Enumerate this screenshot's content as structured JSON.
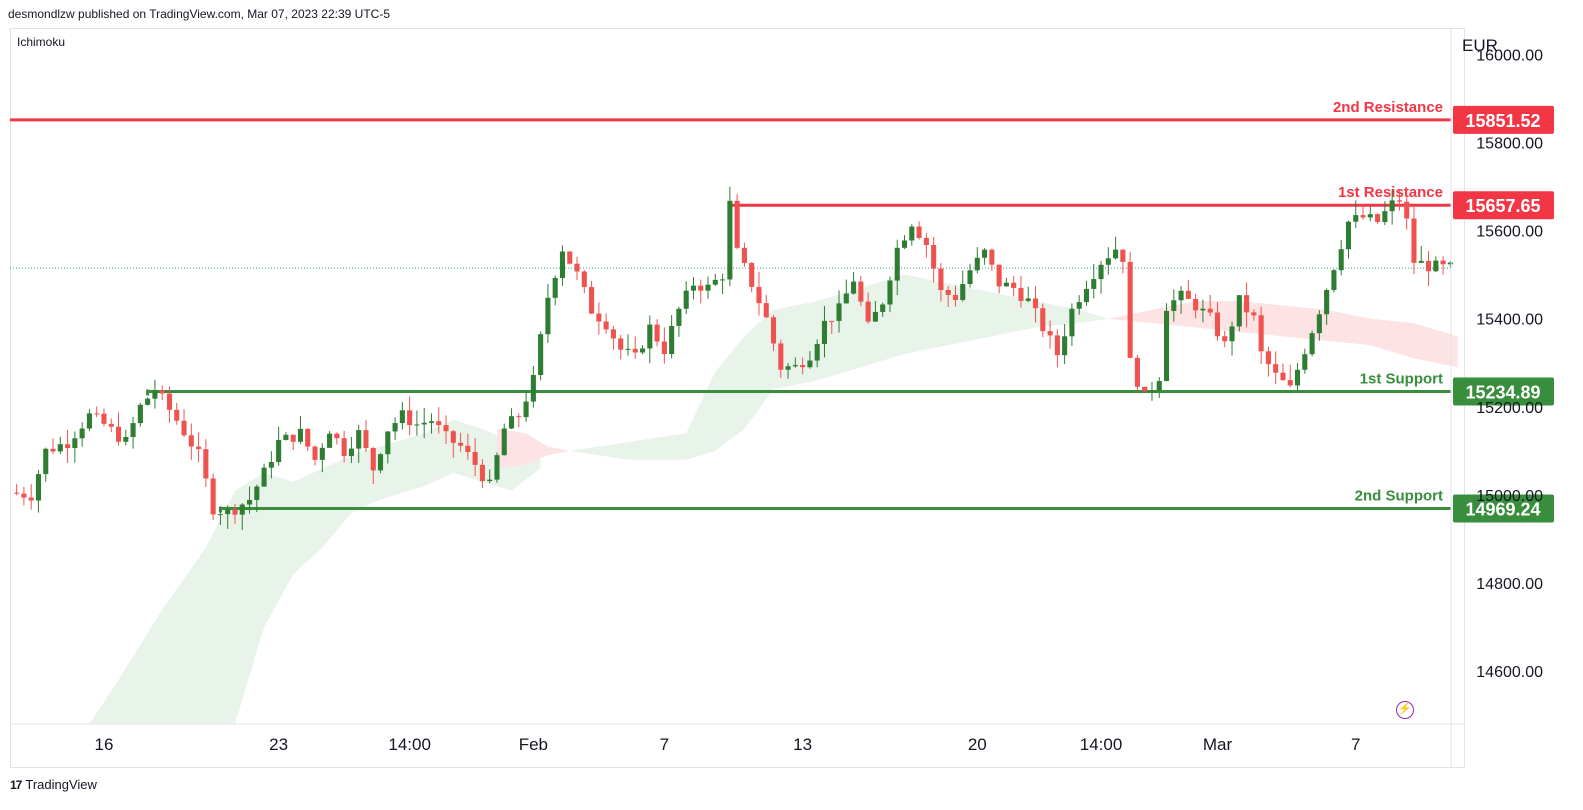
{
  "publisher_line": "desmondlzw published on TradingView.com, Mar 07, 2023 22:39 UTC-5",
  "indicator": "Ichimoku",
  "footer": {
    "brand": "TradingView"
  },
  "icons": {
    "footer_logo": "tradingview-logo-icon",
    "alert": "lightning-icon"
  },
  "chart_data": {
    "type": "candlestick",
    "currency": "EUR",
    "ylim": [
      14480,
      16060
    ],
    "y_ticks": [
      14600,
      14800,
      15000,
      15200,
      15400,
      15600,
      15800,
      16000
    ],
    "y_tick_labels": [
      "14600.00",
      "14800.00",
      "15000.00",
      "15200.00",
      "15400.00",
      "15600.00",
      "15800.00",
      "16000.00"
    ],
    "x_ticks": [
      {
        "label": "16",
        "bar": 12
      },
      {
        "label": "23",
        "bar": 36
      },
      {
        "label": "14:00",
        "bar": 54
      },
      {
        "label": "Feb",
        "bar": 71
      },
      {
        "label": "7",
        "bar": 89
      },
      {
        "label": "13",
        "bar": 108
      },
      {
        "label": "20",
        "bar": 132
      },
      {
        "label": "14:00",
        "bar": 149
      },
      {
        "label": "Mar",
        "bar": 165
      },
      {
        "label": "7",
        "bar": 184
      }
    ],
    "bar_count": 198,
    "last_price": 15515,
    "levels": [
      {
        "name": "2nd Resistance",
        "value": 15851.52,
        "value_label": "15851.52",
        "color": "#f23645",
        "start_bar": 0
      },
      {
        "name": "1st Resistance",
        "value": 15657.65,
        "value_label": "15657.65",
        "color": "#f23645",
        "start_bar": 98
      },
      {
        "name": "1st Support",
        "value": 15234.89,
        "value_label": "15234.89",
        "color": "#388e3c",
        "start_bar": 18
      },
      {
        "name": "2nd Support",
        "value": 14969.24,
        "value_label": "14969.24",
        "color": "#388e3c",
        "start_bar": 28
      }
    ],
    "colors": {
      "up": "#2e7d32",
      "down": "#ef5350",
      "cloud_bull": "#e8f3ea",
      "cloud_bear": "#fde3e3",
      "grid": "#eef0f4",
      "axis_text": "#131722",
      "last_price_line": "#26a69a"
    },
    "price_path": [
      [
        0,
        15005
      ],
      [
        3,
        15000
      ],
      [
        5,
        15100
      ],
      [
        8,
        15120
      ],
      [
        11,
        15180
      ],
      [
        13,
        15160
      ],
      [
        16,
        15120
      ],
      [
        18,
        15200
      ],
      [
        20,
        15240
      ],
      [
        23,
        15170
      ],
      [
        26,
        15090
      ],
      [
        28,
        14970
      ],
      [
        30,
        14960
      ],
      [
        33,
        14990
      ],
      [
        35,
        15050
      ],
      [
        37,
        15120
      ],
      [
        40,
        15140
      ],
      [
        42,
        15080
      ],
      [
        44,
        15150
      ],
      [
        46,
        15100
      ],
      [
        48,
        15140
      ],
      [
        50,
        15060
      ],
      [
        52,
        15150
      ],
      [
        54,
        15180
      ],
      [
        56,
        15160
      ],
      [
        58,
        15170
      ],
      [
        60,
        15130
      ],
      [
        62,
        15110
      ],
      [
        64,
        15070
      ],
      [
        66,
        15020
      ],
      [
        68,
        15150
      ],
      [
        70,
        15180
      ],
      [
        72,
        15260
      ],
      [
        74,
        15450
      ],
      [
        76,
        15560
      ],
      [
        78,
        15500
      ],
      [
        80,
        15420
      ],
      [
        82,
        15390
      ],
      [
        84,
        15330
      ],
      [
        86,
        15310
      ],
      [
        88,
        15380
      ],
      [
        90,
        15330
      ],
      [
        92,
        15420
      ],
      [
        94,
        15480
      ],
      [
        96,
        15470
      ],
      [
        98,
        15500
      ],
      [
        99,
        15660
      ],
      [
        100,
        15550
      ],
      [
        102,
        15480
      ],
      [
        104,
        15400
      ],
      [
        106,
        15290
      ],
      [
        108,
        15290
      ],
      [
        110,
        15320
      ],
      [
        112,
        15390
      ],
      [
        114,
        15420
      ],
      [
        116,
        15490
      ],
      [
        118,
        15380
      ],
      [
        120,
        15440
      ],
      [
        122,
        15560
      ],
      [
        124,
        15620
      ],
      [
        126,
        15570
      ],
      [
        128,
        15460
      ],
      [
        130,
        15450
      ],
      [
        132,
        15510
      ],
      [
        134,
        15550
      ],
      [
        136,
        15480
      ],
      [
        138,
        15470
      ],
      [
        140,
        15440
      ],
      [
        142,
        15380
      ],
      [
        144,
        15320
      ],
      [
        146,
        15420
      ],
      [
        148,
        15480
      ],
      [
        150,
        15530
      ],
      [
        152,
        15560
      ],
      [
        153,
        15540
      ],
      [
        154,
        15300
      ],
      [
        156,
        15220
      ],
      [
        158,
        15270
      ],
      [
        159,
        15430
      ],
      [
        161,
        15450
      ],
      [
        163,
        15430
      ],
      [
        165,
        15400
      ],
      [
        167,
        15340
      ],
      [
        169,
        15440
      ],
      [
        171,
        15400
      ],
      [
        172,
        15320
      ],
      [
        174,
        15270
      ],
      [
        176,
        15240
      ],
      [
        178,
        15330
      ],
      [
        180,
        15420
      ],
      [
        182,
        15520
      ],
      [
        184,
        15620
      ],
      [
        186,
        15630
      ],
      [
        188,
        15620
      ],
      [
        190,
        15660
      ],
      [
        191,
        15670
      ],
      [
        192,
        15620
      ],
      [
        193,
        15530
      ],
      [
        195,
        15520
      ],
      [
        197,
        15515
      ]
    ],
    "cloud": [
      {
        "from_bar": 10,
        "to_bar": 72,
        "kind": "bull",
        "top": [
          [
            10,
            14480
          ],
          [
            14,
            14580
          ],
          [
            20,
            14740
          ],
          [
            26,
            14880
          ],
          [
            30,
            15010
          ],
          [
            34,
            15050
          ],
          [
            38,
            15030
          ],
          [
            42,
            15060
          ],
          [
            46,
            15090
          ],
          [
            50,
            15110
          ],
          [
            56,
            15140
          ],
          [
            60,
            15170
          ],
          [
            64,
            15150
          ],
          [
            68,
            15120
          ],
          [
            72,
            15090
          ]
        ],
        "bottom": [
          [
            10,
            14480
          ],
          [
            14,
            14480
          ],
          [
            20,
            14480
          ],
          [
            26,
            14480
          ],
          [
            30,
            14480
          ],
          [
            34,
            14700
          ],
          [
            38,
            14820
          ],
          [
            42,
            14880
          ],
          [
            46,
            14960
          ],
          [
            50,
            14990
          ],
          [
            56,
            15020
          ],
          [
            60,
            15050
          ],
          [
            64,
            15030
          ],
          [
            68,
            15010
          ],
          [
            72,
            15060
          ]
        ]
      },
      {
        "from_bar": 66,
        "to_bar": 76,
        "kind": "bear",
        "top": [
          [
            66,
            15150
          ],
          [
            70,
            15140
          ],
          [
            73,
            15110
          ],
          [
            76,
            15100
          ]
        ],
        "bottom": [
          [
            66,
            15060
          ],
          [
            70,
            15070
          ],
          [
            73,
            15090
          ],
          [
            76,
            15100
          ]
        ]
      },
      {
        "from_bar": 76,
        "to_bar": 150,
        "kind": "bull",
        "top": [
          [
            76,
            15100
          ],
          [
            84,
            15120
          ],
          [
            92,
            15140
          ],
          [
            96,
            15280
          ],
          [
            100,
            15360
          ],
          [
            104,
            15420
          ],
          [
            110,
            15440
          ],
          [
            116,
            15470
          ],
          [
            122,
            15500
          ],
          [
            128,
            15480
          ],
          [
            134,
            15460
          ],
          [
            140,
            15440
          ],
          [
            146,
            15420
          ],
          [
            150,
            15400
          ]
        ],
        "bottom": [
          [
            76,
            15100
          ],
          [
            84,
            15080
          ],
          [
            92,
            15080
          ],
          [
            96,
            15100
          ],
          [
            100,
            15150
          ],
          [
            104,
            15240
          ],
          [
            110,
            15260
          ],
          [
            116,
            15290
          ],
          [
            122,
            15320
          ],
          [
            128,
            15340
          ],
          [
            134,
            15360
          ],
          [
            140,
            15380
          ],
          [
            146,
            15390
          ],
          [
            150,
            15400
          ]
        ]
      },
      {
        "from_bar": 150,
        "to_bar": 198,
        "kind": "bear",
        "top": [
          [
            150,
            15400
          ],
          [
            156,
            15420
          ],
          [
            162,
            15440
          ],
          [
            168,
            15440
          ],
          [
            174,
            15430
          ],
          [
            180,
            15420
          ],
          [
            186,
            15400
          ],
          [
            192,
            15390
          ],
          [
            198,
            15360
          ]
        ],
        "bottom": [
          [
            150,
            15400
          ],
          [
            156,
            15390
          ],
          [
            162,
            15380
          ],
          [
            168,
            15370
          ],
          [
            174,
            15360
          ],
          [
            180,
            15350
          ],
          [
            186,
            15340
          ],
          [
            192,
            15310
          ],
          [
            198,
            15290
          ]
        ]
      }
    ]
  }
}
